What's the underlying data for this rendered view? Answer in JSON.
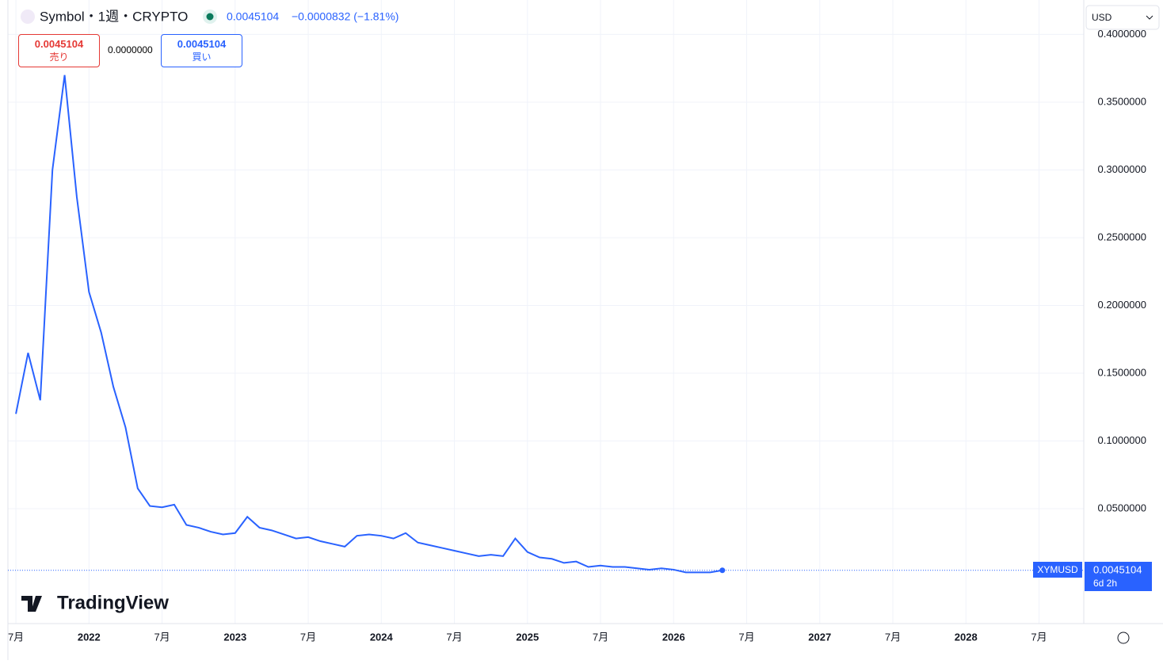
{
  "header": {
    "symbol": "Symbol・1週・CRYPTO",
    "price": "0.0045104",
    "change": "−0.0000832 (−1.81%)",
    "currency": "USD"
  },
  "trade": {
    "sell_price": "0.0045104",
    "sell_label": "売り",
    "spread": "0.0000000",
    "buy_price": "0.0045104",
    "buy_label": "買い"
  },
  "price_tag": {
    "ticker": "XYMUSD",
    "price": "0.0045104",
    "countdown": "6d 2h"
  },
  "logo": "TradingView",
  "chart_data": {
    "type": "line",
    "x": [
      "2021-07",
      "2021-08",
      "2021-09",
      "2021-10",
      "2021-11",
      "2021-12",
      "2022-01",
      "2022-02",
      "2022-03",
      "2022-04",
      "2022-05",
      "2022-06",
      "2022-07",
      "2022-08",
      "2022-09",
      "2022-10",
      "2022-11",
      "2022-12",
      "2023-01",
      "2023-02",
      "2023-03",
      "2023-04",
      "2023-05",
      "2023-06",
      "2023-07",
      "2023-08",
      "2023-09",
      "2023-10",
      "2023-11",
      "2023-12",
      "2024-01",
      "2024-02",
      "2024-03",
      "2024-04",
      "2024-05",
      "2024-06",
      "2024-07",
      "2024-08",
      "2024-09",
      "2024-10",
      "2024-11",
      "2024-12",
      "2025-01",
      "2025-02",
      "2025-03",
      "2025-04",
      "2025-05",
      "2025-06",
      "2025-07",
      "2025-08",
      "2025-09",
      "2025-10",
      "2025-11",
      "2025-12",
      "2026-01",
      "2026-02",
      "2026-03",
      "2026-04",
      "2026-05"
    ],
    "series": [
      {
        "name": "XYMUSD",
        "color": "#2962ff",
        "values": [
          0.12,
          0.165,
          0.13,
          0.3,
          0.37,
          0.28,
          0.21,
          0.18,
          0.14,
          0.11,
          0.065,
          0.052,
          0.051,
          0.053,
          0.038,
          0.036,
          0.033,
          0.031,
          0.032,
          0.044,
          0.036,
          0.034,
          0.031,
          0.028,
          0.029,
          0.026,
          0.024,
          0.022,
          0.03,
          0.031,
          0.03,
          0.028,
          0.032,
          0.025,
          0.023,
          0.021,
          0.019,
          0.017,
          0.015,
          0.016,
          0.015,
          0.028,
          0.018,
          0.014,
          0.013,
          0.01,
          0.011,
          0.007,
          0.008,
          0.007,
          0.007,
          0.006,
          0.005,
          0.006,
          0.005,
          0.003,
          0.003,
          0.003,
          0.0045104
        ]
      }
    ],
    "xlim": [
      "2021-06",
      "2028-11"
    ],
    "xticks": [
      {
        "value": "2021-07",
        "label": "7月"
      },
      {
        "value": "2022-01",
        "label": "2022"
      },
      {
        "value": "2022-07",
        "label": "7月"
      },
      {
        "value": "2023-01",
        "label": "2023"
      },
      {
        "value": "2023-07",
        "label": "7月"
      },
      {
        "value": "2024-01",
        "label": "2024"
      },
      {
        "value": "2024-07",
        "label": "7月"
      },
      {
        "value": "2025-01",
        "label": "2025"
      },
      {
        "value": "2025-07",
        "label": "7月"
      },
      {
        "value": "2026-01",
        "label": "2026"
      },
      {
        "value": "2026-07",
        "label": "7月"
      },
      {
        "value": "2027-01",
        "label": "2027"
      },
      {
        "value": "2027-07",
        "label": "7月"
      },
      {
        "value": "2028-01",
        "label": "2028"
      },
      {
        "value": "2028-07",
        "label": "7月"
      }
    ],
    "ylim": [
      -0.0348,
      0.4254
    ],
    "yticks": [
      {
        "value": 0.05,
        "label": "0.0500000"
      },
      {
        "value": 0.1,
        "label": "0.1000000"
      },
      {
        "value": 0.15,
        "label": "0.1500000"
      },
      {
        "value": 0.2,
        "label": "0.2000000"
      },
      {
        "value": 0.25,
        "label": "0.2500000"
      },
      {
        "value": 0.3,
        "label": "0.3000000"
      },
      {
        "value": 0.35,
        "label": "0.3500000"
      },
      {
        "value": 0.4,
        "label": "0.4000000"
      }
    ],
    "grid": true
  }
}
